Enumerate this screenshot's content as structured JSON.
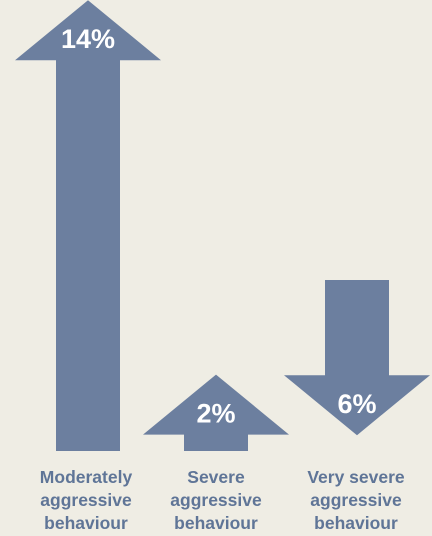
{
  "chart_data": {
    "type": "bar",
    "categories": [
      "Moderately\naggressive\nbehaviour",
      "Severe\naggressive\nbehaviour",
      "Very severe\naggressive\nbehaviour"
    ],
    "values": [
      14,
      2,
      6
    ],
    "value_labels": [
      "14%",
      "2%",
      "6%"
    ],
    "directions": [
      "up",
      "up",
      "down"
    ]
  },
  "colors": {
    "background": "#efede4",
    "arrow": "#6c7f9f",
    "label_text": "#5f7597",
    "value_text": "#ffffff"
  }
}
